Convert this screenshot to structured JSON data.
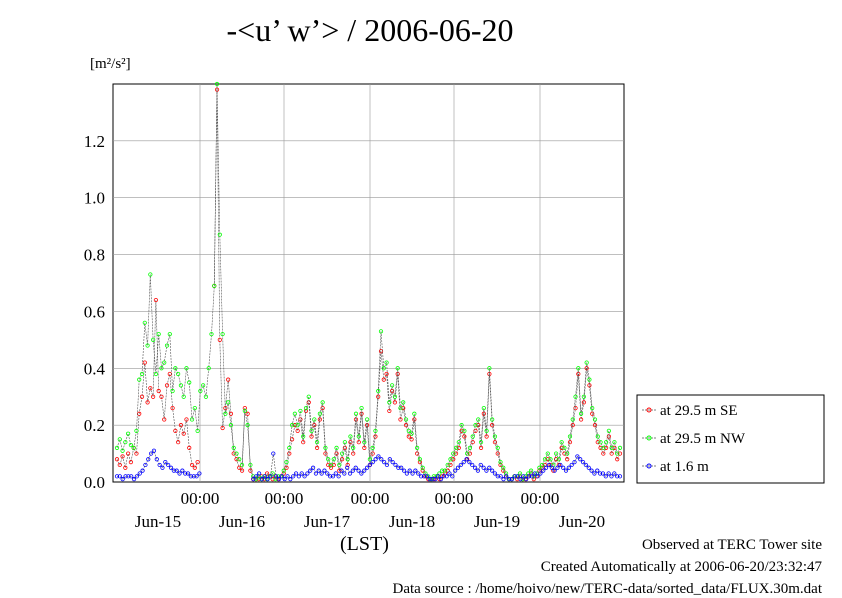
{
  "chart_data": {
    "type": "line",
    "title": "-<u’ w’> / 2006-06-20",
    "ylabel": "[m²/s²]",
    "xlabel": "(LST)",
    "ylim": [
      0,
      1.4
    ],
    "yticks": [
      "0.0",
      "0.2",
      "0.4",
      "0.6",
      "0.8",
      "1.0",
      "1.2"
    ],
    "xtime_labels": [
      "00:00",
      "00:00",
      "00:00",
      "00:00",
      "00:00"
    ],
    "xday_labels": [
      "Jun-15",
      "Jun-16",
      "Jun-17",
      "Jun-18",
      "Jun-19",
      "Jun-20"
    ],
    "grid": true,
    "legend_position": "right",
    "series": [
      {
        "name": "at 29.5 m SE",
        "color": "#ff0000",
        "values": [
          0.08,
          0.06,
          0.09,
          0.05,
          0.1,
          0.07,
          0.12,
          0.1,
          0.24,
          0.3,
          0.42,
          0.28,
          0.33,
          0.3,
          0.64,
          0.32,
          0.3,
          0.22,
          0.34,
          0.38,
          0.26,
          0.18,
          0.14,
          0.2,
          0.17,
          0.22,
          0.12,
          0.06,
          0.05,
          0.07,
          null,
          null,
          null,
          null,
          null,
          0.69,
          1.38,
          0.5,
          0.19,
          0.26,
          0.36,
          0.24,
          0.1,
          0.08,
          0.05,
          0.04,
          0.26,
          0.24,
          0.04,
          0.01,
          0.01,
          0.01,
          0.02,
          0.01,
          0.03,
          0.02,
          0.01,
          0.02,
          0.01,
          0.02,
          0.03,
          0.05,
          0.1,
          0.15,
          0.2,
          0.18,
          0.22,
          0.14,
          0.25,
          0.28,
          0.16,
          0.2,
          0.12,
          0.22,
          0.26,
          0.1,
          0.06,
          0.05,
          0.06,
          0.1,
          0.04,
          0.08,
          0.12,
          0.06,
          0.14,
          0.1,
          0.22,
          0.14,
          0.24,
          0.12,
          0.2,
          0.06,
          0.1,
          0.16,
          0.3,
          0.46,
          0.36,
          0.38,
          0.25,
          0.32,
          0.28,
          0.38,
          0.22,
          0.26,
          0.2,
          0.16,
          0.15,
          0.22,
          0.1,
          0.07,
          0.04,
          0.02,
          0.01,
          0.01,
          0.01,
          0.02,
          0.01,
          0.02,
          0.03,
          0.04,
          0.06,
          0.08,
          0.1,
          0.12,
          0.18,
          0.16,
          0.08,
          0.1,
          0.14,
          0.18,
          0.2,
          0.12,
          0.24,
          0.16,
          0.38,
          0.2,
          0.14,
          0.1,
          0.06,
          0.04,
          0.02,
          0.01,
          0.01,
          0.02,
          0.01,
          0.02,
          0.01,
          0.01,
          0.02,
          0.03,
          0.01,
          0.02,
          0.04,
          0.05,
          0.06,
          0.08,
          0.06,
          0.04,
          0.08,
          0.06,
          0.12,
          0.1,
          0.08,
          0.14,
          0.2,
          0.26,
          0.38,
          0.22,
          0.28,
          0.4,
          0.34,
          0.24,
          0.2,
          0.14,
          0.12,
          0.1,
          0.12,
          0.16,
          0.1,
          0.12,
          0.08,
          0.1
        ]
      },
      {
        "name": "at 29.5 m NW",
        "color": "#00ff00",
        "values": [
          0.12,
          0.15,
          0.11,
          0.14,
          0.17,
          0.13,
          0.12,
          0.18,
          0.36,
          0.38,
          0.56,
          0.48,
          0.73,
          0.5,
          0.38,
          0.52,
          0.4,
          0.42,
          0.48,
          0.52,
          0.32,
          0.4,
          0.38,
          0.34,
          0.3,
          0.4,
          0.35,
          0.22,
          0.26,
          0.18,
          0.32,
          0.34,
          0.3,
          0.4,
          0.52,
          0.69,
          1.4,
          0.87,
          0.52,
          0.24,
          0.28,
          0.2,
          0.12,
          0.1,
          0.08,
          0.06,
          0.25,
          0.2,
          0.06,
          0.02,
          0.01,
          0.02,
          0.01,
          0.02,
          0.01,
          0.02,
          0.03,
          0.01,
          0.02,
          0.02,
          0.04,
          0.07,
          0.12,
          0.2,
          0.24,
          0.2,
          0.25,
          0.16,
          0.26,
          0.3,
          0.18,
          0.22,
          0.14,
          0.24,
          0.28,
          0.12,
          0.08,
          0.06,
          0.08,
          0.12,
          0.06,
          0.1,
          0.14,
          0.08,
          0.16,
          0.12,
          0.24,
          0.16,
          0.26,
          0.14,
          0.22,
          0.08,
          0.12,
          0.18,
          0.32,
          0.53,
          0.4,
          0.42,
          0.28,
          0.34,
          0.3,
          0.4,
          0.26,
          0.28,
          0.22,
          0.18,
          0.17,
          0.24,
          0.12,
          0.08,
          0.05,
          0.03,
          0.02,
          0.01,
          0.02,
          0.02,
          0.03,
          0.04,
          0.04,
          0.06,
          0.08,
          0.1,
          0.12,
          0.14,
          0.2,
          0.18,
          0.1,
          0.12,
          0.16,
          0.2,
          0.22,
          0.14,
          0.26,
          0.18,
          0.4,
          0.22,
          0.16,
          0.12,
          0.07,
          0.05,
          0.03,
          0.01,
          0.01,
          0.02,
          0.02,
          0.03,
          0.01,
          0.02,
          0.03,
          0.04,
          0.02,
          0.03,
          0.05,
          0.06,
          0.08,
          0.1,
          0.08,
          0.06,
          0.1,
          0.08,
          0.14,
          0.12,
          0.1,
          0.16,
          0.22,
          0.3,
          0.4,
          0.24,
          0.3,
          0.42,
          0.36,
          0.26,
          0.22,
          0.16,
          0.14,
          0.12,
          0.14,
          0.18,
          0.12,
          0.14,
          0.1,
          0.12
        ]
      },
      {
        "name": "at 1.6 m",
        "color": "#0000ff",
        "values": [
          0.02,
          0.02,
          0.01,
          0.02,
          0.02,
          0.02,
          0.01,
          0.02,
          0.03,
          0.04,
          0.06,
          0.08,
          0.1,
          0.11,
          0.08,
          0.06,
          0.05,
          0.07,
          0.06,
          0.05,
          0.04,
          0.04,
          0.03,
          0.04,
          0.03,
          0.03,
          0.02,
          0.02,
          0.02,
          0.03,
          null,
          null,
          null,
          null,
          null,
          null,
          null,
          null,
          null,
          null,
          null,
          null,
          null,
          null,
          null,
          null,
          null,
          null,
          0.01,
          0.02,
          0.03,
          0.01,
          0.02,
          0.01,
          0.02,
          0.1,
          0.02,
          0.01,
          0.02,
          0.01,
          0.02,
          0.01,
          0.02,
          0.03,
          0.02,
          0.03,
          0.02,
          0.03,
          0.04,
          0.05,
          0.03,
          0.04,
          0.03,
          0.04,
          0.03,
          0.02,
          0.02,
          0.03,
          0.02,
          0.04,
          0.03,
          0.05,
          0.03,
          0.04,
          0.05,
          0.04,
          0.03,
          0.04,
          0.05,
          0.06,
          0.07,
          0.08,
          0.09,
          0.08,
          0.07,
          0.06,
          0.08,
          0.07,
          0.06,
          0.05,
          0.05,
          0.04,
          0.03,
          0.04,
          0.03,
          0.04,
          0.03,
          0.02,
          0.02,
          0.02,
          0.01,
          0.01,
          0.01,
          0.02,
          0.01,
          0.02,
          0.02,
          0.03,
          0.02,
          0.04,
          0.05,
          0.06,
          0.07,
          0.08,
          0.07,
          0.06,
          0.05,
          0.04,
          0.06,
          0.05,
          0.04,
          0.05,
          0.04,
          0.03,
          0.02,
          0.02,
          0.01,
          0.02,
          0.01,
          0.01,
          0.02,
          0.02,
          0.01,
          0.02,
          0.01,
          0.02,
          0.02,
          0.03,
          0.02,
          0.03,
          0.04,
          0.05,
          0.06,
          0.05,
          0.04,
          0.05,
          0.06,
          0.05,
          0.04,
          0.05,
          0.06,
          0.07,
          0.09,
          0.08,
          0.07,
          0.06,
          0.05,
          0.04,
          0.03,
          0.04,
          0.03,
          0.03,
          0.02,
          0.03,
          0.02,
          0.03,
          0.02,
          0.02
        ]
      }
    ]
  },
  "footer": {
    "line1": "Observed at TERC Tower site",
    "line2": "Created Automatically at 2006-06-20/23:32:47",
    "line3": "Data source : /home/hoivo/new/TERC-data/sorted_data/FLUX.30m.dat"
  }
}
